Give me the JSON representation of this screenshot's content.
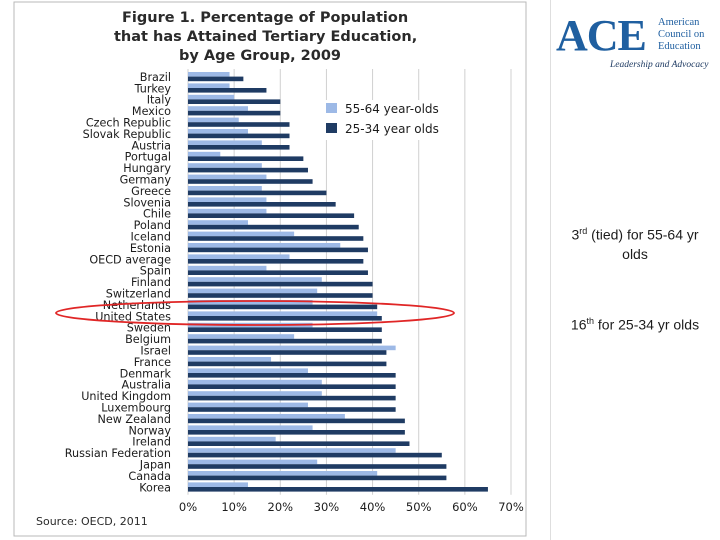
{
  "chart_data": {
    "type": "bar",
    "orientation": "horizontal",
    "title_lines": [
      "Figure 1. Percentage of Population",
      "that has Attained Tertiary Education,",
      "by Age Group, 2009"
    ],
    "categories": [
      "Brazil",
      "Turkey",
      "Italy",
      "Mexico",
      "Czech Republic",
      "Slovak Republic",
      "Austria",
      "Portugal",
      "Hungary",
      "Germany",
      "Greece",
      "Slovenia",
      "Chile",
      "Poland",
      "Iceland",
      "Estonia",
      "OECD average",
      "Spain",
      "Finland",
      "Switzerland",
      "Netherlands",
      "United States",
      "Sweden",
      "Belgium",
      "Israel",
      "France",
      "Denmark",
      "Australia",
      "United Kingdom",
      "Luxembourg",
      "New Zealand",
      "Norway",
      "Ireland",
      "Russian Federation",
      "Japan",
      "Canada",
      "Korea"
    ],
    "series": [
      {
        "name": "55-64 year-olds",
        "color": "#9db9e6",
        "values": [
          9,
          9,
          10,
          13,
          11,
          13,
          16,
          7,
          16,
          17,
          16,
          17,
          17,
          13,
          23,
          33,
          22,
          17,
          29,
          28,
          27,
          41,
          27,
          23,
          45,
          18,
          26,
          29,
          29,
          26,
          34,
          27,
          19,
          45,
          28,
          41,
          13
        ]
      },
      {
        "name": "25-34 year olds",
        "color": "#1f3b63",
        "values": [
          12,
          17,
          20,
          20,
          22,
          22,
          22,
          25,
          26,
          27,
          30,
          32,
          36,
          37,
          38,
          39,
          38,
          39,
          40,
          40,
          41,
          42,
          42,
          42,
          43,
          43,
          45,
          45,
          45,
          45,
          47,
          47,
          48,
          55,
          56,
          56,
          65
        ]
      }
    ],
    "xlim": [
      0,
      70
    ],
    "xticks": [
      "0%",
      "10%",
      "20%",
      "30%",
      "40%",
      "50%",
      "60%",
      "70%"
    ],
    "grid": true,
    "legend_position": "top-right",
    "highlighted_category": "United States",
    "source": "Source: OECD, 2011"
  },
  "logo": {
    "wordmark": "ACE",
    "org_lines": [
      "American",
      "Council on",
      "Education"
    ],
    "tagline": "Leadership and Advocacy"
  },
  "notes": [
    {
      "rank": "3",
      "suffix": "rd",
      "text": " (tied) for 55-64 yr olds"
    },
    {
      "rank": "16",
      "suffix": "th",
      "text": " for 25-34 yr olds"
    }
  ],
  "colors": {
    "accent": "#1f5fa0",
    "highlight": "#e02626"
  }
}
